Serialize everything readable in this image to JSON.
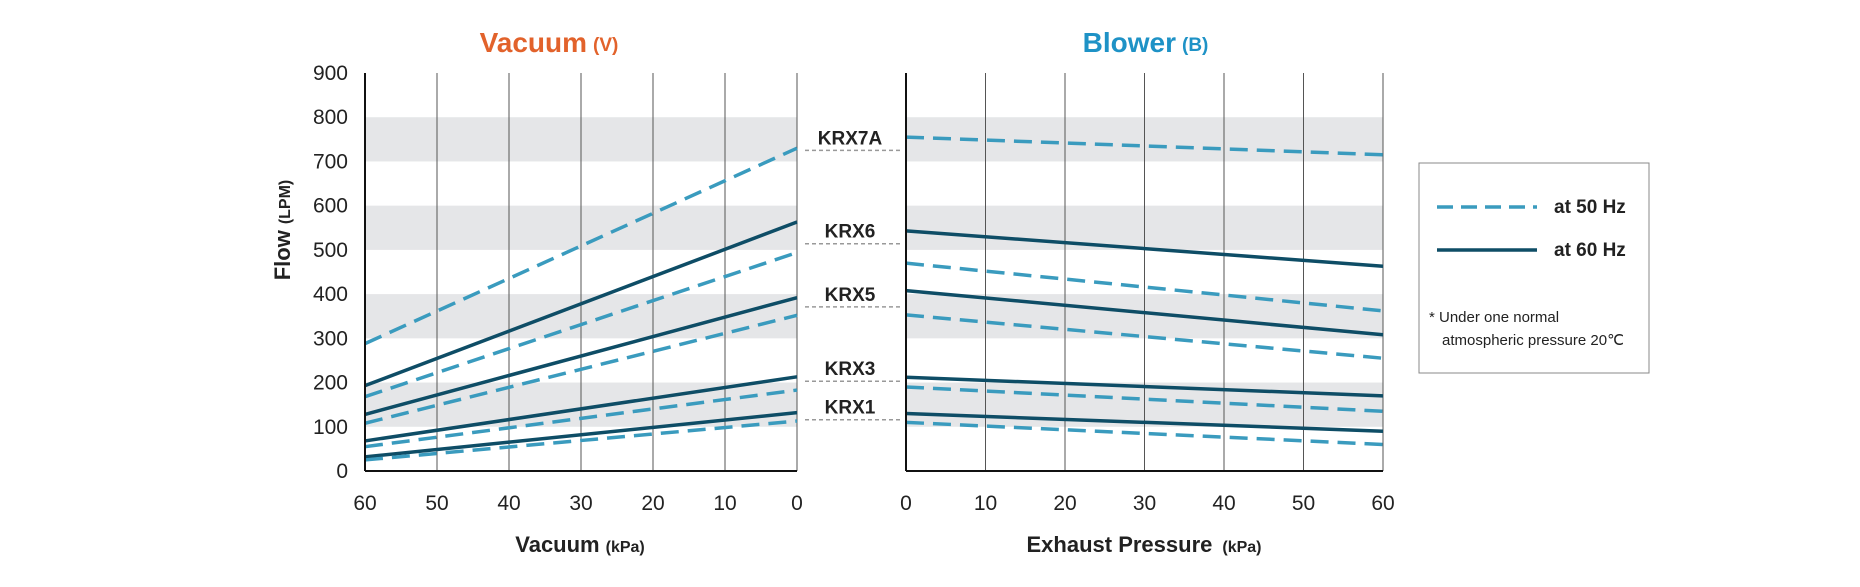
{
  "colors": {
    "hz50": "#3A9BBE",
    "hz60": "#0E4D66",
    "band": "#E5E6E8",
    "grid": "#555555",
    "connector": "#999999",
    "vacuum_title": "#E2622B",
    "blower_title": "#1E92C6",
    "text": "#222222"
  },
  "vacuum_panel": {
    "title": "Vacuum",
    "title_suffix": "(V)"
  },
  "blower_panel": {
    "title": "Blower",
    "title_suffix": "(B)"
  },
  "y_axis_label": {
    "main": "Flow",
    "unit": "(LPM)"
  },
  "legend": {
    "hz50_label": "at 50 Hz",
    "hz60_label": "at 60 Hz",
    "note_line1": "* Under one normal",
    "note_line2": "atmospheric pressure 20℃"
  },
  "chart_data": [
    {
      "type": "line",
      "panel": "vacuum",
      "title": "Vacuum (V)",
      "xlabel": "Vacuum",
      "xlabel_unit": "(kPa)",
      "ylabel": "Flow (LPM)",
      "x_reversed": true,
      "xlim": [
        60,
        0
      ],
      "ylim": [
        0,
        900
      ],
      "x_ticks": [
        60,
        50,
        40,
        30,
        20,
        10,
        0
      ],
      "y_ticks": [
        0,
        100,
        200,
        300,
        400,
        500,
        600,
        700,
        800,
        900
      ],
      "grid": true,
      "series": [
        {
          "model": "KRX7A",
          "freq": "50Hz",
          "x": [
            60,
            0
          ],
          "y": [
            288,
            730
          ]
        },
        {
          "model": "KRX6",
          "freq": "60Hz",
          "x": [
            60,
            0
          ],
          "y": [
            193,
            563
          ]
        },
        {
          "model": "KRX6",
          "freq": "50Hz",
          "x": [
            60,
            0
          ],
          "y": [
            168,
            494
          ]
        },
        {
          "model": "KRX5",
          "freq": "60Hz",
          "x": [
            60,
            0
          ],
          "y": [
            128,
            392
          ]
        },
        {
          "model": "KRX5",
          "freq": "50Hz",
          "x": [
            60,
            0
          ],
          "y": [
            108,
            352
          ]
        },
        {
          "model": "KRX3",
          "freq": "60Hz",
          "x": [
            60,
            0
          ],
          "y": [
            68,
            213
          ]
        },
        {
          "model": "KRX3",
          "freq": "50Hz",
          "x": [
            60,
            0
          ],
          "y": [
            55,
            183
          ]
        },
        {
          "model": "KRX1",
          "freq": "60Hz",
          "x": [
            60,
            0
          ],
          "y": [
            32,
            132
          ]
        },
        {
          "model": "KRX1",
          "freq": "50Hz",
          "x": [
            60,
            0
          ],
          "y": [
            25,
            113
          ]
        }
      ]
    },
    {
      "type": "line",
      "panel": "blower",
      "title": "Blower (B)",
      "xlabel": "Exhaust Pressure",
      "xlabel_unit": "(kPa)",
      "x_reversed": false,
      "xlim": [
        0,
        60
      ],
      "ylim": [
        0,
        900
      ],
      "x_ticks": [
        0,
        10,
        20,
        30,
        40,
        50,
        60
      ],
      "grid": true,
      "series": [
        {
          "model": "KRX7A",
          "freq": "50Hz",
          "x": [
            0,
            60
          ],
          "y": [
            755,
            715
          ]
        },
        {
          "model": "KRX6",
          "freq": "60Hz",
          "x": [
            0,
            60
          ],
          "y": [
            543,
            463
          ]
        },
        {
          "model": "KRX6",
          "freq": "50Hz",
          "x": [
            0,
            60
          ],
          "y": [
            470,
            362
          ]
        },
        {
          "model": "KRX5",
          "freq": "60Hz",
          "x": [
            0,
            60
          ],
          "y": [
            408,
            308
          ]
        },
        {
          "model": "KRX5",
          "freq": "50Hz",
          "x": [
            0,
            60
          ],
          "y": [
            353,
            255
          ]
        },
        {
          "model": "KRX3",
          "freq": "60Hz",
          "x": [
            0,
            60
          ],
          "y": [
            212,
            170
          ]
        },
        {
          "model": "KRX3",
          "freq": "50Hz",
          "x": [
            0,
            60
          ],
          "y": [
            190,
            135
          ]
        },
        {
          "model": "KRX1",
          "freq": "60Hz",
          "x": [
            0,
            60
          ],
          "y": [
            130,
            90
          ]
        },
        {
          "model": "KRX1",
          "freq": "50Hz",
          "x": [
            0,
            60
          ],
          "y": [
            110,
            60
          ]
        }
      ]
    }
  ],
  "model_labels": [
    {
      "name": "KRX7A",
      "at_flow": 725
    },
    {
      "name": "KRX6",
      "at_flow": 514
    },
    {
      "name": "KRX5",
      "at_flow": 371
    },
    {
      "name": "KRX3",
      "at_flow": 203
    },
    {
      "name": "KRX1",
      "at_flow": 116
    }
  ]
}
